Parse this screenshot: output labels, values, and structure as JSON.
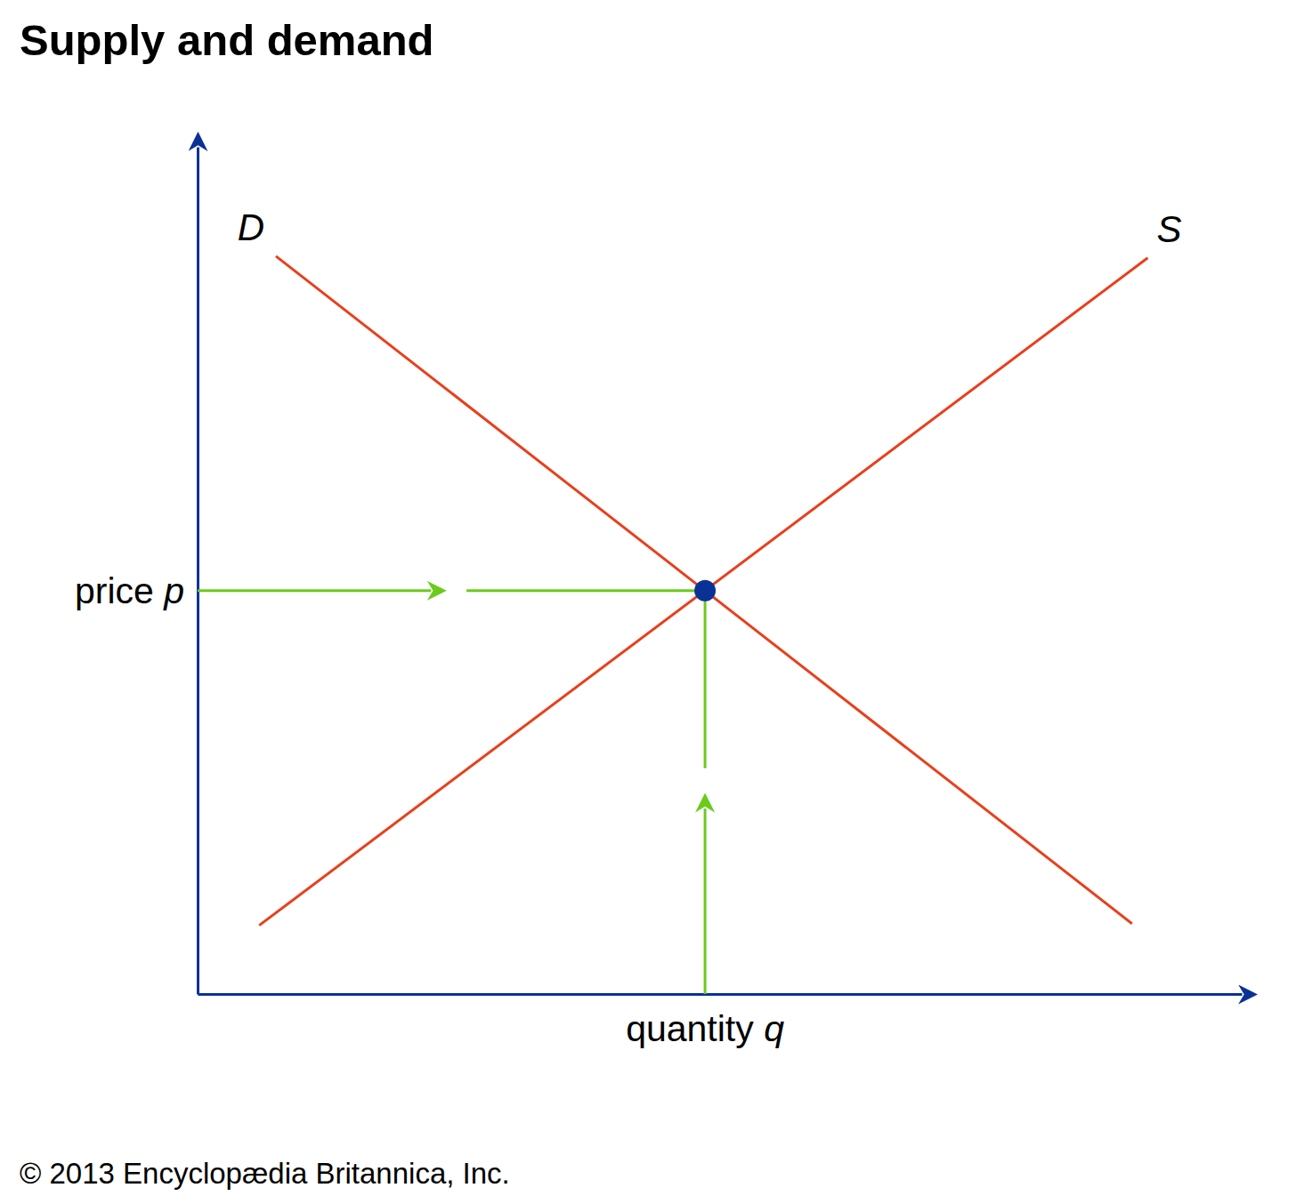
{
  "chart_data": {
    "type": "line",
    "title": "Supply and demand",
    "x_label": "quantity q",
    "y_label": "price p",
    "credit": "© 2013 Encyclopædia Britannica, Inc.",
    "xlim": [
      0,
      100
    ],
    "ylim": [
      0,
      100
    ],
    "xticks": [],
    "yticks": [],
    "tick_labels": false,
    "grid": false,
    "series": [
      {
        "name": "D",
        "color": "#e8401c",
        "x": [
          7.5,
          89.5
        ],
        "values": [
          87.1,
          8.3
        ]
      },
      {
        "name": "S",
        "color": "#e8401c",
        "x": [
          5.9,
          91.0
        ],
        "values": [
          8.1,
          86.9
        ]
      }
    ],
    "equilibrium": {
      "x": 48.6,
      "y": 47.6
    }
  }
}
